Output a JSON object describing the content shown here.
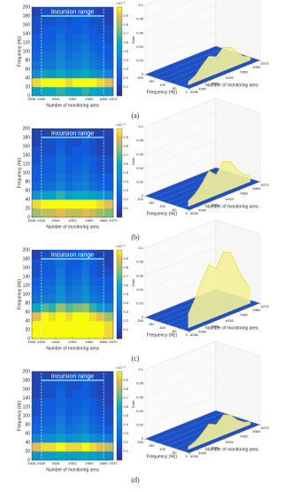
{
  "chart_data": [
    {
      "type": "heatmap",
      "panel_label": "(a)",
      "annotation": "Incursion range",
      "xlabel": "Number of monitoring area",
      "ylabel": "Frequency (Hz)",
      "colorbar_label": "×10⁻³",
      "x_bins": [
        336,
        340,
        343,
        346,
        350,
        353,
        357,
        360,
        363,
        366,
        370
      ],
      "y_bins": [
        0,
        20,
        40,
        60,
        80,
        100,
        120,
        140,
        160,
        180,
        200
      ],
      "values": [
        [
          0.55,
          0.6,
          0.6,
          0.65,
          0.6,
          0.6,
          0.65,
          0.6,
          0.55,
          0.5
        ],
        [
          0.95,
          1,
          1,
          1,
          0.95,
          1,
          1,
          1,
          0.95,
          0.9
        ],
        [
          0.45,
          0.55,
          0.5,
          0.6,
          0.5,
          0.55,
          0.6,
          0.5,
          0.45,
          0.4
        ],
        [
          0.3,
          0.35,
          0.35,
          0.45,
          0.35,
          0.4,
          0.45,
          0.35,
          0.3,
          0.25
        ],
        [
          0.25,
          0.3,
          0.3,
          0.4,
          0.3,
          0.35,
          0.4,
          0.3,
          0.25,
          0.2
        ],
        [
          0.2,
          0.25,
          0.25,
          0.35,
          0.25,
          0.3,
          0.35,
          0.25,
          0.2,
          0.2
        ],
        [
          0.2,
          0.2,
          0.2,
          0.3,
          0.2,
          0.25,
          0.3,
          0.2,
          0.2,
          0.15
        ],
        [
          0.15,
          0.2,
          0.2,
          0.25,
          0.2,
          0.2,
          0.25,
          0.2,
          0.15,
          0.15
        ],
        [
          0.15,
          0.15,
          0.15,
          0.2,
          0.15,
          0.2,
          0.2,
          0.15,
          0.15,
          0.1
        ],
        [
          0.1,
          0.15,
          0.15,
          0.15,
          0.15,
          0.15,
          0.15,
          0.15,
          0.1,
          0.1
        ]
      ],
      "xlim": [
        336,
        370
      ],
      "xticks": [
        {
          "value": 336,
          "label": "#336"
        },
        {
          "value": 340,
          "label": "#340"
        },
        {
          "value": 346,
          "label": "#346"
        },
        {
          "value": 353,
          "label": "#353"
        },
        {
          "value": 360,
          "label": "#360"
        },
        {
          "value": 366,
          "label": "#366"
        },
        {
          "value": 370,
          "label": "#370"
        }
      ],
      "ylim": [
        0,
        200
      ],
      "yticks": [
        0,
        20,
        40,
        60,
        80,
        100,
        120,
        140,
        160,
        180,
        200
      ],
      "clim": [
        0,
        1
      ],
      "cticks": [
        0.1,
        0.2,
        0.3,
        0.4,
        0.5,
        0.6,
        0.7,
        0.8,
        0.9
      ],
      "incursion_range": [
        340,
        366
      ]
    },
    {
      "type": "surface3d",
      "xlabel": "Number of monitoring area",
      "ylabel": "Frequency (Hz)",
      "zlabel": "Data",
      "x": [
        338,
        341.5,
        344.5,
        348,
        351.5,
        355,
        358.5,
        361.5,
        364.5,
        368
      ],
      "values": [
        0.005,
        0.01,
        0.02,
        0.03,
        0.025,
        0.035,
        0.03,
        0.02,
        0.01,
        0.005
      ],
      "xlim": [
        336,
        370
      ],
      "xticks": [
        {
          "value": 336,
          "label": "#336"
        },
        {
          "value": 340,
          "label": "#340"
        },
        {
          "value": 346,
          "label": "#346"
        },
        {
          "value": 353,
          "label": "#353"
        },
        {
          "value": 360,
          "label": "#360"
        },
        {
          "value": 366,
          "label": "#366"
        },
        {
          "value": 370,
          "label": "#370"
        }
      ],
      "ylim": [
        0,
        200
      ],
      "yticks": [
        0,
        50,
        100,
        150,
        200
      ],
      "zlim": [
        0,
        0.1
      ],
      "zticks": [
        0,
        0.02,
        0.04,
        0.06,
        0.08,
        0.1
      ]
    },
    {
      "type": "heatmap",
      "panel_label": "(b)",
      "annotation": "Incursion range",
      "xlabel": "Number of monitoring area",
      "ylabel": "Frequency (Hz)",
      "colorbar_label": "×10⁻³",
      "x_bins": [
        336,
        340,
        343,
        346,
        350,
        353,
        357,
        360,
        363,
        366,
        370
      ],
      "y_bins": [
        0,
        20,
        40,
        60,
        80,
        100,
        120,
        140,
        160,
        180,
        200
      ],
      "values": [
        [
          0.8,
          0.85,
          0.85,
          0.9,
          0.85,
          0.85,
          0.9,
          0.85,
          0.8,
          0.75
        ],
        [
          0.95,
          1,
          1,
          1,
          1,
          1,
          1,
          1,
          0.95,
          0.9
        ],
        [
          0.5,
          0.55,
          0.55,
          0.65,
          0.55,
          0.6,
          0.6,
          0.55,
          0.5,
          0.45
        ],
        [
          0.25,
          0.3,
          0.3,
          0.4,
          0.3,
          0.35,
          0.4,
          0.3,
          0.25,
          0.2
        ],
        [
          0.2,
          0.25,
          0.25,
          0.35,
          0.25,
          0.3,
          0.35,
          0.25,
          0.2,
          0.2
        ],
        [
          0.2,
          0.2,
          0.2,
          0.3,
          0.2,
          0.25,
          0.3,
          0.2,
          0.15,
          0.15
        ],
        [
          0.15,
          0.2,
          0.2,
          0.3,
          0.2,
          0.2,
          0.25,
          0.2,
          0.15,
          0.15
        ],
        [
          0.15,
          0.15,
          0.15,
          0.25,
          0.15,
          0.2,
          0.2,
          0.15,
          0.1,
          0.1
        ],
        [
          0.1,
          0.15,
          0.15,
          0.2,
          0.15,
          0.15,
          0.2,
          0.15,
          0.1,
          0.1
        ],
        [
          0.1,
          0.1,
          0.1,
          0.15,
          0.1,
          0.15,
          0.15,
          0.1,
          0.1,
          0.1
        ]
      ],
      "xlim": [
        336,
        370
      ],
      "xticks": [
        {
          "value": 336,
          "label": "#336"
        },
        {
          "value": 340,
          "label": "#340"
        },
        {
          "value": 346,
          "label": "#346"
        },
        {
          "value": 353,
          "label": "#353"
        },
        {
          "value": 360,
          "label": "#360"
        },
        {
          "value": 366,
          "label": "#366"
        },
        {
          "value": 370,
          "label": "#370"
        }
      ],
      "ylim": [
        0,
        200
      ],
      "yticks": [
        0,
        20,
        40,
        60,
        80,
        100,
        120,
        140,
        160,
        180,
        200
      ],
      "clim": [
        0,
        1
      ],
      "cticks": [
        0.1,
        0.2,
        0.3,
        0.4,
        0.5,
        0.6,
        0.7,
        0.8,
        0.9
      ],
      "incursion_range": [
        340,
        366
      ]
    },
    {
      "type": "surface3d",
      "xlabel": "Number of monitoring area",
      "ylabel": "Frequency (Hz)",
      "zlabel": "Data",
      "x": [
        338,
        341.5,
        344.5,
        348,
        351.5,
        355,
        358.5,
        361.5,
        364.5,
        368
      ],
      "values": [
        0.008,
        0.015,
        0.025,
        0.04,
        0.03,
        0.045,
        0.04,
        0.025,
        0.015,
        0.008
      ],
      "xlim": [
        336,
        370
      ],
      "xticks": [
        {
          "value": 336,
          "label": "#336"
        },
        {
          "value": 340,
          "label": "#340"
        },
        {
          "value": 346,
          "label": "#346"
        },
        {
          "value": 353,
          "label": "#353"
        },
        {
          "value": 360,
          "label": "#360"
        },
        {
          "value": 366,
          "label": "#366"
        },
        {
          "value": 370,
          "label": "#370"
        }
      ],
      "ylim": [
        0,
        200
      ],
      "yticks": [
        0,
        50,
        100,
        150,
        200
      ],
      "zlim": [
        0,
        0.1
      ],
      "zticks": [
        0,
        0.02,
        0.04,
        0.06,
        0.08,
        0.1
      ]
    },
    {
      "type": "heatmap",
      "panel_label": "(c)",
      "annotation": "Incursion range",
      "xlabel": "Number of monitoring area",
      "ylabel": "Frequency (Hz)",
      "colorbar_label": "×10⁻³",
      "x_bins": [
        336,
        340,
        343,
        346,
        350,
        353,
        357,
        360,
        363,
        366,
        370
      ],
      "y_bins": [
        0,
        20,
        40,
        60,
        80,
        100,
        120,
        140,
        160,
        180,
        200
      ],
      "values": [
        [
          1,
          1,
          1,
          1,
          1,
          1,
          1,
          1,
          1,
          0.95
        ],
        [
          1,
          1,
          1,
          1,
          1,
          1,
          1,
          1,
          1,
          0.95
        ],
        [
          0.9,
          1,
          0.95,
          1,
          0.95,
          1,
          1,
          0.95,
          0.9,
          0.8
        ],
        [
          0.6,
          0.7,
          0.65,
          0.8,
          0.7,
          0.75,
          0.8,
          0.65,
          0.55,
          0.45
        ],
        [
          0.3,
          0.35,
          0.35,
          0.5,
          0.35,
          0.4,
          0.5,
          0.35,
          0.3,
          0.25
        ],
        [
          0.25,
          0.3,
          0.3,
          0.45,
          0.3,
          0.35,
          0.45,
          0.3,
          0.25,
          0.2
        ],
        [
          0.2,
          0.25,
          0.25,
          0.4,
          0.25,
          0.3,
          0.4,
          0.25,
          0.2,
          0.2
        ],
        [
          0.15,
          0.2,
          0.2,
          0.35,
          0.2,
          0.25,
          0.35,
          0.2,
          0.15,
          0.15
        ],
        [
          0.15,
          0.2,
          0.2,
          0.3,
          0.2,
          0.2,
          0.3,
          0.2,
          0.15,
          0.1
        ],
        [
          0.1,
          0.15,
          0.15,
          0.25,
          0.15,
          0.2,
          0.25,
          0.15,
          0.1,
          0.1
        ]
      ],
      "xlim": [
        336,
        370
      ],
      "xticks": [
        {
          "value": 336,
          "label": "#336"
        },
        {
          "value": 340,
          "label": "#340"
        },
        {
          "value": 346,
          "label": "#346"
        },
        {
          "value": 353,
          "label": "#353"
        },
        {
          "value": 360,
          "label": "#360"
        },
        {
          "value": 366,
          "label": "#366"
        },
        {
          "value": 370,
          "label": "#370"
        }
      ],
      "ylim": [
        0,
        200
      ],
      "yticks": [
        0,
        20,
        40,
        60,
        80,
        100,
        120,
        140,
        160,
        180,
        200
      ],
      "clim": [
        0,
        1
      ],
      "cticks": [
        0.1,
        0.2,
        0.3,
        0.4,
        0.5,
        0.6,
        0.7,
        0.8,
        0.9
      ],
      "incursion_range": [
        340,
        366
      ]
    },
    {
      "type": "surface3d",
      "xlabel": "Number of monitoring area",
      "ylabel": "Frequency (Hz)",
      "zlabel": "Data",
      "x": [
        338,
        341.5,
        344.5,
        348,
        351.5,
        355,
        358.5,
        361.5,
        364.5,
        368
      ],
      "values": [
        0.02,
        0.04,
        0.06,
        0.08,
        0.07,
        0.09,
        0.085,
        0.06,
        0.04,
        0.02
      ],
      "xlim": [
        336,
        370
      ],
      "xticks": [
        {
          "value": 336,
          "label": "#336"
        },
        {
          "value": 340,
          "label": "#340"
        },
        {
          "value": 346,
          "label": "#346"
        },
        {
          "value": 353,
          "label": "#353"
        },
        {
          "value": 360,
          "label": "#360"
        },
        {
          "value": 366,
          "label": "#366"
        },
        {
          "value": 370,
          "label": "#370"
        }
      ],
      "ylim": [
        0,
        200
      ],
      "yticks": [
        0,
        50,
        100,
        150,
        200
      ],
      "zlim": [
        0,
        0.1
      ],
      "zticks": [
        0,
        0.02,
        0.04,
        0.06,
        0.08,
        0.1
      ]
    },
    {
      "type": "heatmap",
      "panel_label": "(d)",
      "annotation": "Incursion range",
      "xlabel": "Number of monitoring area",
      "ylabel": "Frequency (Hz)",
      "colorbar_label": "×10⁻³",
      "x_bins": [
        336,
        340,
        343,
        346,
        350,
        353,
        357,
        360,
        363,
        366,
        370
      ],
      "y_bins": [
        0,
        20,
        40,
        60,
        80,
        100,
        120,
        140,
        160,
        180,
        200
      ],
      "values": [
        [
          0.5,
          0.55,
          0.55,
          0.6,
          0.55,
          0.55,
          0.6,
          0.55,
          0.5,
          0.45
        ],
        [
          0.9,
          0.95,
          0.95,
          1,
          0.95,
          0.95,
          1,
          0.95,
          0.9,
          0.85
        ],
        [
          0.4,
          0.45,
          0.45,
          0.55,
          0.45,
          0.5,
          0.55,
          0.45,
          0.4,
          0.35
        ],
        [
          0.25,
          0.3,
          0.3,
          0.4,
          0.3,
          0.35,
          0.4,
          0.3,
          0.25,
          0.2
        ],
        [
          0.2,
          0.25,
          0.25,
          0.35,
          0.25,
          0.3,
          0.35,
          0.25,
          0.2,
          0.15
        ],
        [
          0.15,
          0.2,
          0.2,
          0.3,
          0.2,
          0.25,
          0.3,
          0.2,
          0.15,
          0.15
        ],
        [
          0.15,
          0.2,
          0.2,
          0.25,
          0.2,
          0.2,
          0.25,
          0.2,
          0.15,
          0.1
        ],
        [
          0.1,
          0.15,
          0.15,
          0.25,
          0.15,
          0.2,
          0.2,
          0.15,
          0.1,
          0.1
        ],
        [
          0.1,
          0.15,
          0.15,
          0.2,
          0.15,
          0.15,
          0.2,
          0.15,
          0.1,
          0.1
        ],
        [
          0.1,
          0.1,
          0.1,
          0.15,
          0.1,
          0.15,
          0.15,
          0.1,
          0.1,
          0.1
        ]
      ],
      "xlim": [
        336,
        370
      ],
      "xticks": [
        {
          "value": 336,
          "label": "#336"
        },
        {
          "value": 340,
          "label": "#340"
        },
        {
          "value": 346,
          "label": "#346"
        },
        {
          "value": 353,
          "label": "#353"
        },
        {
          "value": 360,
          "label": "#360"
        },
        {
          "value": 366,
          "label": "#366"
        },
        {
          "value": 370,
          "label": "#370"
        }
      ],
      "ylim": [
        0,
        200
      ],
      "yticks": [
        0,
        20,
        40,
        60,
        80,
        100,
        120,
        140,
        160,
        180,
        200
      ],
      "clim": [
        0,
        1
      ],
      "cticks": [
        0.1,
        0.2,
        0.3,
        0.4,
        0.5,
        0.6,
        0.7,
        0.8,
        0.9
      ],
      "incursion_range": [
        340,
        366
      ]
    },
    {
      "type": "surface3d",
      "xlabel": "Number of monitoring area",
      "ylabel": "Frequency (Hz)",
      "zlabel": "Data",
      "x": [
        338,
        341.5,
        344.5,
        348,
        351.5,
        355,
        358.5,
        361.5,
        364.5,
        368
      ],
      "values": [
        0.004,
        0.008,
        0.015,
        0.025,
        0.02,
        0.03,
        0.025,
        0.015,
        0.008,
        0.004
      ],
      "xlim": [
        336,
        370
      ],
      "xticks": [
        {
          "value": 336,
          "label": "#336"
        },
        {
          "value": 340,
          "label": "#340"
        },
        {
          "value": 346,
          "label": "#346"
        },
        {
          "value": 353,
          "label": "#353"
        },
        {
          "value": 360,
          "label": "#360"
        },
        {
          "value": 366,
          "label": "#366"
        },
        {
          "value": 370,
          "label": "#370"
        }
      ],
      "ylim": [
        0,
        200
      ],
      "yticks": [
        0,
        50,
        100,
        150,
        200
      ],
      "zlim": [
        0,
        0.1
      ],
      "zticks": [
        0,
        0.02,
        0.04,
        0.06,
        0.08,
        0.1
      ]
    }
  ]
}
